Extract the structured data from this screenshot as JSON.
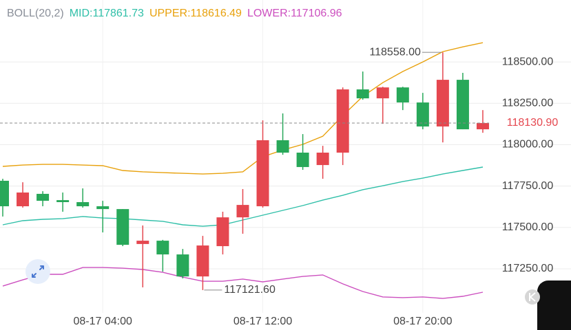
{
  "chart_data": {
    "type": "candlestick",
    "header": [
      "BOLL(20,2)",
      "MID:117861.73",
      "UPPER:118616.49",
      "LOWER:117106.96"
    ],
    "header_colors": [
      "#8a8f99",
      "#2fbfa8",
      "#e8a10c",
      "#cc4fbf"
    ],
    "categories": [
      null,
      null,
      null,
      null,
      null,
      "08-17 04:00",
      null,
      null,
      null,
      null,
      null,
      null,
      null,
      "08-17 12:00",
      null,
      null,
      null,
      null,
      null,
      null,
      null,
      "08-17 20:00",
      null,
      null,
      null
    ],
    "open": [
      117782,
      117628,
      117703,
      117665,
      117653,
      117628,
      117611,
      117400,
      117420,
      117337,
      117204,
      117387,
      117561,
      117628,
      118027,
      117952,
      117877,
      117952,
      118334,
      118280,
      118346,
      118255,
      118110,
      118392,
      118093
    ],
    "high": [
      117794,
      117773,
      117719,
      117711,
      117736,
      117661,
      117611,
      117512,
      117425,
      117370,
      117449,
      117595,
      117732,
      118147,
      118189,
      118064,
      117993,
      118346,
      118442,
      118350,
      118350,
      118313,
      118558,
      118434,
      118209
    ],
    "low": [
      117566,
      117620,
      117628,
      117595,
      117620,
      117470,
      117387,
      117138,
      117233,
      117192,
      117121.6,
      117337,
      117462,
      117620,
      117939,
      117848,
      117794,
      117877,
      118272,
      118126,
      118209,
      118093,
      118014,
      118093,
      118072
    ],
    "close": [
      117628,
      117711,
      117661,
      117653,
      117628,
      117611,
      117395,
      117420,
      117337,
      117204,
      117391,
      117561,
      117636,
      118027,
      117952,
      117865,
      117952,
      118334,
      118280,
      118346,
      118255,
      118110,
      118392,
      118093,
      118130.9
    ],
    "up_color": "#e5474f",
    "down_color": "#28a859",
    "series": [
      {
        "name": "UPPER",
        "color": "#e8a10c",
        "values": [
          117869,
          117877,
          117881,
          117881,
          117877,
          117873,
          117844,
          117836,
          117831,
          117827,
          117823,
          117827,
          117836,
          117927,
          117968,
          118002,
          118051,
          118176,
          118292,
          118375,
          118442,
          118500,
          118562,
          118591,
          118616
        ]
      },
      {
        "name": "MID",
        "color": "#2fbfa8",
        "values": [
          117516,
          117541,
          117549,
          117553,
          117566,
          117557,
          117553,
          117545,
          117537,
          117516,
          117507,
          117516,
          117545,
          117574,
          117603,
          117632,
          117665,
          117694,
          117728,
          117752,
          117777,
          117798,
          117823,
          117844,
          117865
        ]
      },
      {
        "name": "LOWER",
        "color": "#cc4fbf",
        "values": [
          117146,
          117183,
          117217,
          117217,
          117258,
          117258,
          117254,
          117246,
          117229,
          117200,
          117175,
          117175,
          117188,
          117171,
          117188,
          117204,
          117213,
          117159,
          117113,
          117080,
          117076,
          117080,
          117071,
          117084,
          117109
        ]
      }
    ],
    "ylim": [
      117005,
      118708
    ],
    "yticks": [
      {
        "value": 118500,
        "label": "118500.00"
      },
      {
        "value": 118250,
        "label": "118250.00"
      },
      {
        "value": 118000,
        "label": "118000.00"
      },
      {
        "value": 117750,
        "label": "117750.00"
      },
      {
        "value": 117500,
        "label": "117500.00"
      },
      {
        "value": 117250,
        "label": "117250.00"
      }
    ],
    "current_price": {
      "value": 118130.9,
      "label": "118130.90"
    },
    "annotations": [
      {
        "text": "118558.00",
        "value": 118558,
        "index": 22,
        "side": "left"
      },
      {
        "text": "117121.60",
        "value": 117121.6,
        "index": 10,
        "side": "right"
      }
    ],
    "grid": true
  }
}
